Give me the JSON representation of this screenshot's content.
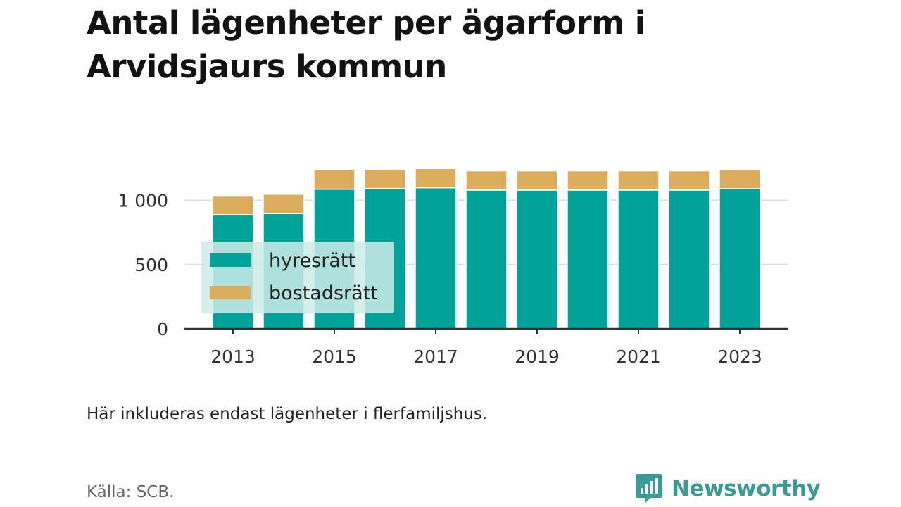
{
  "title": "Antal lägenheter per ägarform i Arvidsjaurs kommun",
  "note": "Här inkluderas endast lägenheter i flerfamiljshus.",
  "source": "Källa: SCB.",
  "logo_text": "Newsworthy",
  "colors": {
    "hyresratt": "#00a39a",
    "bostadsratt": "#dcad5c",
    "axis": "#333333",
    "grid": "#dddddd",
    "legend_bg": "#cdebe9",
    "logo": "#3a9b95"
  },
  "chart_data": {
    "type": "bar",
    "stacked": true,
    "categories": [
      2013,
      2014,
      2015,
      2016,
      2017,
      2018,
      2019,
      2020,
      2021,
      2022,
      2023
    ],
    "series": [
      {
        "name": "hyresrätt",
        "values": [
          888,
          898,
          1087,
          1092,
          1098,
          1080,
          1080,
          1080,
          1080,
          1080,
          1090
        ]
      },
      {
        "name": "bostadsrätt",
        "values": [
          145,
          150,
          150,
          150,
          150,
          150,
          150,
          150,
          150,
          150,
          150
        ]
      }
    ],
    "xticks": [
      "2013",
      "2015",
      "2017",
      "2019",
      "2021",
      "2023"
    ],
    "yticks": [
      0,
      500,
      1000
    ],
    "ytick_labels": [
      "0",
      "500",
      "1 000"
    ],
    "ylim": [
      0,
      1400
    ],
    "grid": true,
    "legend_position": "inside-left"
  }
}
